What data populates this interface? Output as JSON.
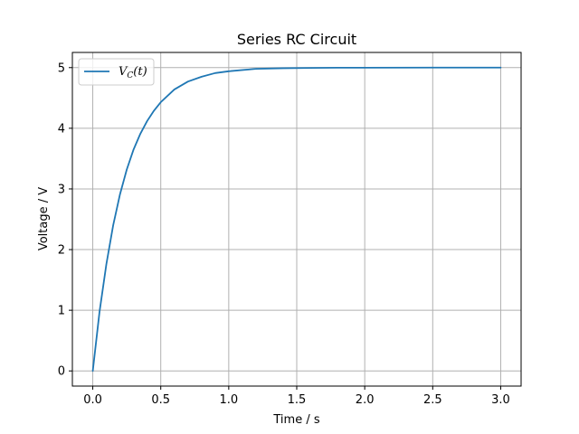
{
  "chart_data": {
    "type": "line",
    "title": "Series RC Circuit",
    "xlabel": "Time / s",
    "ylabel": "Voltage / V",
    "xlim": [
      -0.15,
      3.15
    ],
    "ylim": [
      -0.25,
      5.25
    ],
    "x_ticks": [
      0.0,
      0.5,
      1.0,
      1.5,
      2.0,
      2.5,
      3.0
    ],
    "x_tick_labels": [
      "0.0",
      "0.5",
      "1.0",
      "1.5",
      "2.0",
      "2.5",
      "3.0"
    ],
    "y_ticks": [
      0,
      1,
      2,
      3,
      4,
      5
    ],
    "y_tick_labels": [
      "0",
      "1",
      "2",
      "3",
      "4",
      "5"
    ],
    "grid": true,
    "legend_position": "top-left",
    "series": [
      {
        "name": "V_C(t)",
        "legend_main": "V",
        "legend_sub": "C",
        "legend_rest": "(t)",
        "color": "#1f77b4",
        "x": [
          0.0,
          0.05,
          0.1,
          0.15,
          0.2,
          0.25,
          0.3,
          0.35,
          0.4,
          0.45,
          0.5,
          0.6,
          0.7,
          0.8,
          0.9,
          1.0,
          1.2,
          1.4,
          1.6,
          1.8,
          2.0,
          2.5,
          3.0
        ],
        "y": [
          0.0,
          0.98,
          1.76,
          2.4,
          2.91,
          3.32,
          3.65,
          3.91,
          4.12,
          4.29,
          4.43,
          4.64,
          4.77,
          4.85,
          4.91,
          4.94,
          4.98,
          4.99,
          4.995,
          4.998,
          4.999,
          5.0,
          5.0
        ]
      }
    ]
  }
}
